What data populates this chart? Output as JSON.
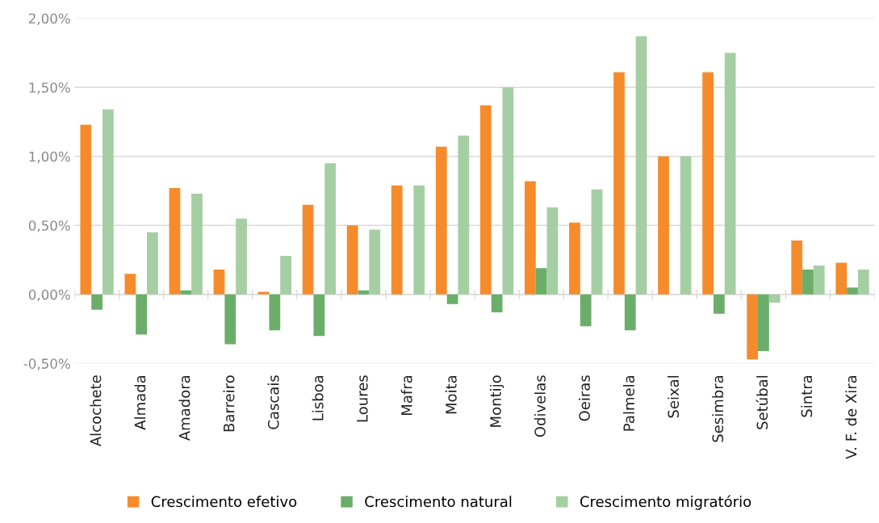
{
  "chart_data": {
    "type": "bar",
    "categories": [
      "Alcochete",
      "Almada",
      "Amadora",
      "Barreiro",
      "Cascais",
      "Lisboa",
      "Loures",
      "Mafra",
      "Moita",
      "Montijo",
      "Odivelas",
      "Oeiras",
      "Palmela",
      "Seixal",
      "Sesimbra",
      "Setúbal",
      "Sintra",
      "V. F. de Xira"
    ],
    "series": [
      {
        "name": "Crescimento efetivo",
        "color": "#f68b2c",
        "values": [
          1.23,
          0.15,
          0.77,
          0.18,
          0.02,
          0.65,
          0.5,
          0.79,
          1.07,
          1.37,
          0.82,
          0.52,
          1.61,
          1.0,
          1.61,
          -0.47,
          0.39,
          0.23
        ]
      },
      {
        "name": "Crescimento natural",
        "color": "#6aae6a",
        "values": [
          -0.11,
          -0.29,
          0.03,
          -0.36,
          -0.26,
          -0.3,
          0.03,
          0,
          -0.07,
          -0.13,
          0.19,
          -0.23,
          -0.26,
          0,
          -0.14,
          -0.41,
          0.18,
          0.05
        ]
      },
      {
        "name": "Crescimento migratório",
        "color": "#a6cea3",
        "values": [
          1.34,
          0.45,
          0.73,
          0.55,
          0.28,
          0.95,
          0.47,
          0.79,
          1.15,
          1.5,
          0.63,
          0.76,
          1.87,
          1.0,
          1.75,
          -0.06,
          0.21,
          0.18
        ]
      }
    ],
    "ylim": [
      -0.5,
      2.0
    ],
    "yticks": [
      {
        "value": -0.5,
        "label": "-0,50%"
      },
      {
        "value": 0,
        "label": "0,00%"
      },
      {
        "value": 0.5,
        "label": "0,50%"
      },
      {
        "value": 1.0,
        "label": "1,00%"
      },
      {
        "value": 1.5,
        "label": "1,50%"
      },
      {
        "value": 2.0,
        "label": "2,00%"
      }
    ],
    "grid": "y",
    "legend": "bottom"
  }
}
